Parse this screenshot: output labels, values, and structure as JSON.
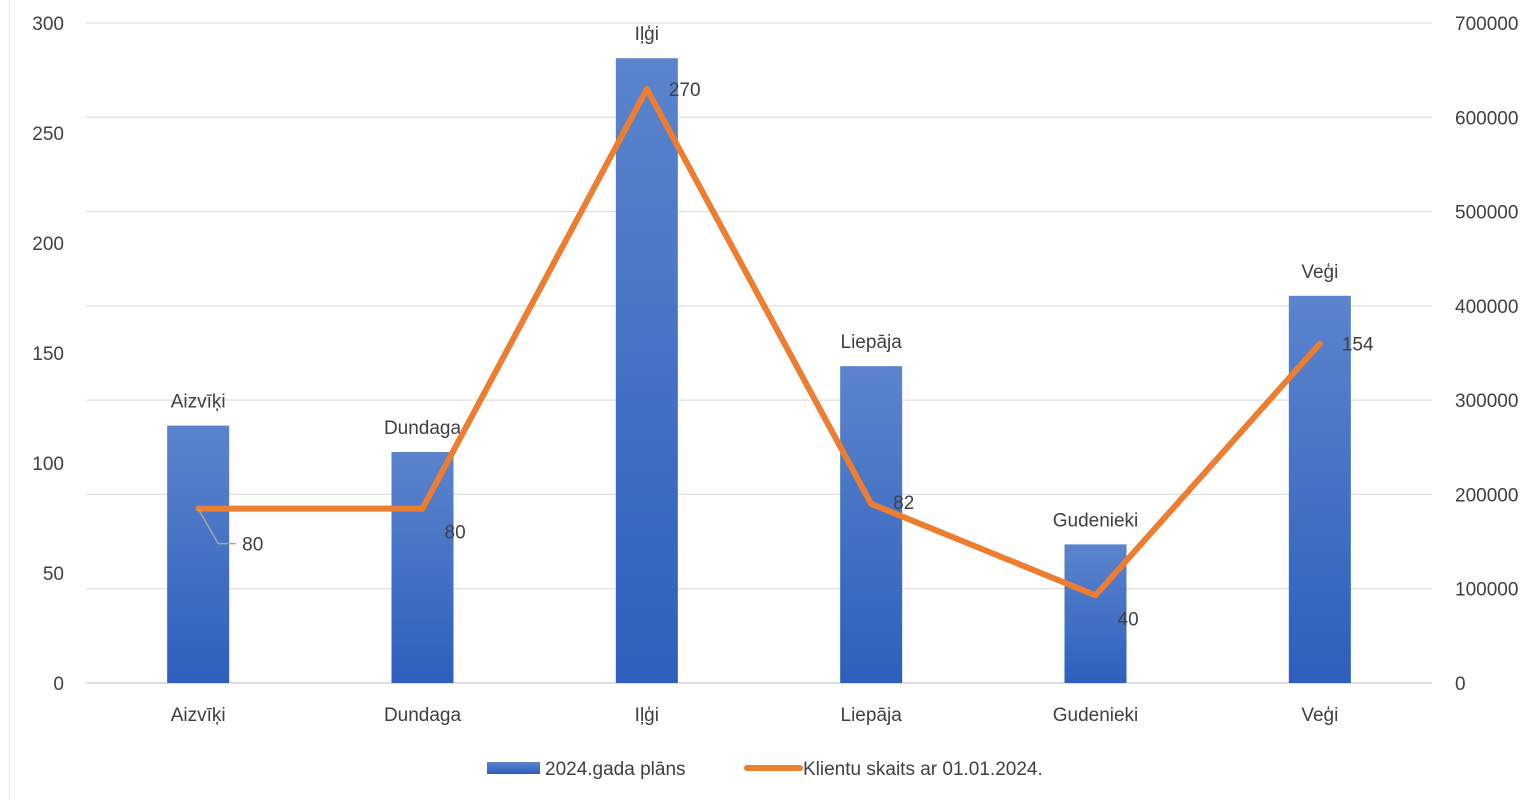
{
  "chart_data": {
    "type": "bar",
    "categories": [
      "Aizvīķi",
      "Dundaga",
      "Iļģi",
      "Liepāja",
      "Gudenieki",
      "Veģi"
    ],
    "series": [
      {
        "name": "2024.gada plāns",
        "type": "bar",
        "axis": "left",
        "values": [
          117,
          105,
          284,
          144,
          63,
          176
        ],
        "bar_labels": [
          "Aizvīķi",
          "Dundaga",
          "Iļģi",
          "Liepāja",
          "Gudenieki",
          "Veģi"
        ],
        "color": "#4472C4"
      },
      {
        "name": "Klientu skaits ar 01.01.2024.",
        "type": "line",
        "axis": "right",
        "values": [
          185000,
          185000,
          630000,
          190000,
          93000,
          360000
        ],
        "data_labels": [
          "80",
          "80",
          "270",
          "82",
          "40",
          "154"
        ],
        "color": "#ED7D31"
      }
    ],
    "left_axis": {
      "ylim": [
        0,
        300
      ],
      "ticks": [
        "0",
        "50",
        "100",
        "150",
        "200",
        "250",
        "300"
      ]
    },
    "right_axis": {
      "ylim": [
        0,
        700000
      ],
      "ticks": [
        "0",
        "100000",
        "200000",
        "300000",
        "400000",
        "500000",
        "600000",
        "700000"
      ]
    },
    "grid": true,
    "legend_position": "bottom"
  }
}
